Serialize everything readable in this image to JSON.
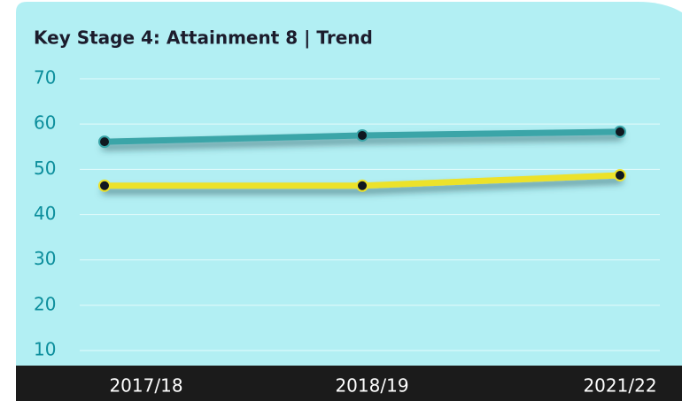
{
  "chart_data": {
    "type": "line",
    "title": "Key Stage 4: Attainment 8 | Trend",
    "categories": [
      "2017/18",
      "2018/19",
      "2021/22"
    ],
    "series": [
      {
        "color": "#3aa5a8",
        "values": [
          56.1,
          57.5,
          58.3
        ]
      },
      {
        "color": "#ece22a",
        "values": [
          46.4,
          46.4,
          48.7
        ]
      }
    ],
    "ylim": [
      10,
      70
    ],
    "yticks": [
      10,
      20,
      30,
      40,
      50,
      60,
      70
    ],
    "grid": true
  }
}
